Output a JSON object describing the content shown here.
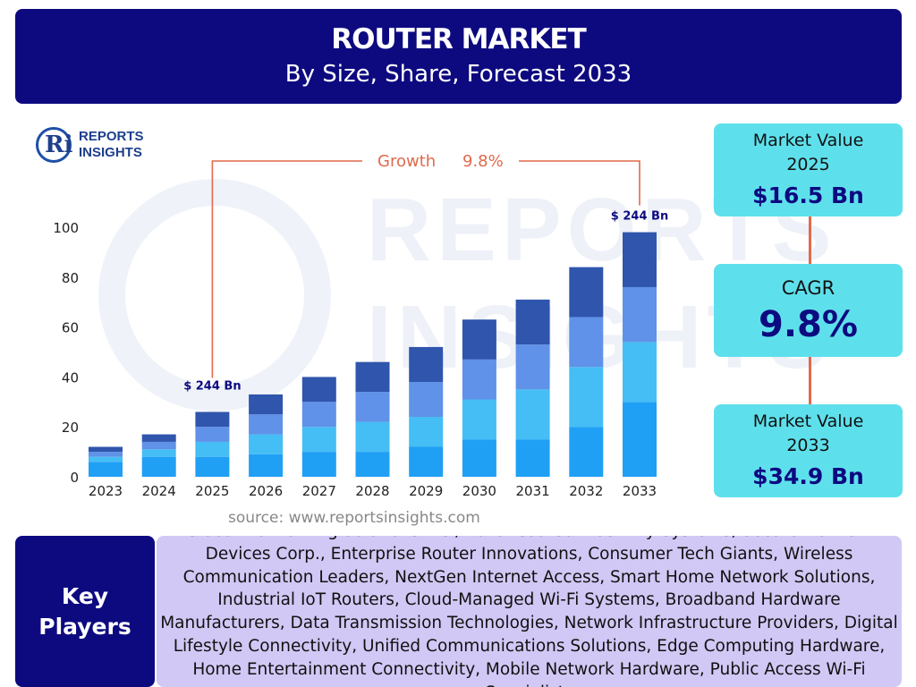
{
  "header": {
    "title": "ROUTER MARKET",
    "subtitle": "By Size, Share, Forecast 2033"
  },
  "logo": {
    "line1": "REPORTS",
    "line2": "INSIGHTS"
  },
  "chart_data": {
    "type": "bar",
    "stacked": true,
    "categories": [
      "2023",
      "2024",
      "2025",
      "2026",
      "2027",
      "2028",
      "2029",
      "2030",
      "2031",
      "2032",
      "2033"
    ],
    "series": [
      {
        "values": [
          6,
          8,
          8,
          9,
          10,
          10,
          12,
          15,
          15,
          20,
          30
        ]
      },
      {
        "values": [
          2,
          3,
          6,
          8,
          10,
          12,
          12,
          16,
          20,
          24,
          24
        ]
      },
      {
        "values": [
          2,
          3,
          6,
          8,
          10,
          12,
          14,
          16,
          18,
          20,
          22
        ]
      },
      {
        "values": [
          2,
          3,
          6,
          8,
          10,
          12,
          14,
          16,
          18,
          20,
          22
        ]
      }
    ],
    "series_colors": [
      "#1fa0f5",
      "#45bdf5",
      "#5f92e8",
      "#2f55ad"
    ],
    "yticks": [
      0,
      20,
      40,
      60,
      80,
      100
    ],
    "ylim": [
      0,
      100
    ],
    "annotations": {
      "growth_label": "Growth",
      "growth_value": "9.8%",
      "start_label": "$ 244 Bn",
      "end_label": "$ 244 Bn"
    },
    "annotation_color": "#e06a4c",
    "grid": false
  },
  "side": {
    "box1": {
      "label_line1": "Market Value",
      "label_line2": "2025",
      "value": "$16.5 Bn"
    },
    "box2": {
      "label": "CAGR",
      "value": "9.8%"
    },
    "box3": {
      "label_line1": "Market Value",
      "label_line2": "2033",
      "value": "$34.9 Bn"
    }
  },
  "source": "source: www.reportsinsights.com",
  "key_players": {
    "label_line1": "Key",
    "label_line2": "Players",
    "text": "Global Networking Solutions Inc., Advanced Connectivity Systems, Secure Network Devices Corp., Enterprise Router Innovations, Consumer Tech Giants, Wireless Communication Leaders, NextGen Internet Access, Smart Home Network Solutions, Industrial IoT Routers, Cloud-Managed Wi-Fi Systems, Broadband Hardware Manufacturers, Data Transmission Technologies, Network Infrastructure Providers, Digital Lifestyle Connectivity, Unified Communications Solutions, Edge Computing Hardware, Home Entertainment Connectivity, Mobile Network Hardware, Public Access Wi-Fi Specialists"
  }
}
